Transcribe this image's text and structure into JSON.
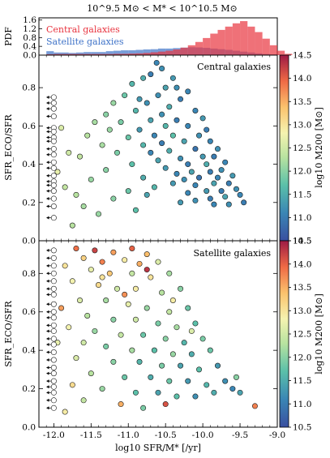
{
  "figure": {
    "title": "10^9.5 M⊙ < M* < 10^10.5 M⊙"
  },
  "colors": {
    "central": "#e8343f",
    "satellite": "#3f73c8"
  },
  "chart_data": [
    {
      "name": "pdf-histogram",
      "type": "bar",
      "ylabel": "PDF",
      "xlim": [
        -12.2,
        -9.0
      ],
      "ylim": [
        0,
        1.7
      ],
      "yticks": [
        0.0,
        0.4,
        0.8,
        1.2,
        1.6
      ],
      "legend": "top-left",
      "bin_edges_start": -12.2,
      "bin_width": 0.1,
      "series": [
        {
          "name": "Central galaxies",
          "color": "#e8343f",
          "values": [
            0.0,
            0.04,
            0.05,
            0.05,
            0.05,
            0.05,
            0.05,
            0.05,
            0.05,
            0.05,
            0.06,
            0.06,
            0.07,
            0.08,
            0.1,
            0.13,
            0.16,
            0.2,
            0.26,
            0.34,
            0.45,
            0.6,
            0.78,
            0.98,
            1.15,
            1.3,
            1.45,
            1.55,
            1.3,
            1.05,
            0.75,
            0.45,
            0.2,
            0.06
          ]
        },
        {
          "name": "Satellite galaxies",
          "color": "#3f73c8",
          "values": [
            0.0,
            0.18,
            0.12,
            0.12,
            0.1,
            0.12,
            0.14,
            0.14,
            0.14,
            0.18,
            0.2,
            0.22,
            0.22,
            0.24,
            0.26,
            0.27,
            0.3,
            0.3,
            0.32,
            0.34,
            0.36,
            0.35,
            0.33,
            0.3,
            0.27,
            0.24,
            0.2,
            0.16,
            0.12,
            0.08,
            0.05,
            0.03,
            0.02,
            0.0
          ]
        }
      ]
    },
    {
      "name": "central-scatter",
      "type": "scatter",
      "annotation": "Central galaxies",
      "ylabel": "SFR_ECO/SFR",
      "xlabel": "",
      "xlim": [
        -12.2,
        -9.0
      ],
      "ylim": [
        0.0,
        0.97
      ],
      "colorbar": {
        "label": "log10 M200 [M⊙]",
        "range": [
          10.5,
          14.5
        ],
        "ticks": [
          10.5,
          11.0,
          11.5,
          12.0,
          12.5,
          13.0,
          13.5,
          14.0,
          14.5
        ]
      },
      "upper_limits": {
        "x": -12.0,
        "y": [
          0.75,
          0.72,
          0.69,
          0.65,
          0.59,
          0.57,
          0.54,
          0.52,
          0.48,
          0.45,
          0.41,
          0.38,
          0.34,
          0.31,
          0.29,
          0.26,
          0.22,
          0.18,
          0.12
        ]
      },
      "points": [
        [
          -10.62,
          0.93,
          11.1
        ],
        [
          -10.55,
          0.9,
          11.2
        ],
        [
          -10.7,
          0.87,
          11.0
        ],
        [
          -10.4,
          0.85,
          11.3
        ],
        [
          -10.8,
          0.85,
          11.5
        ],
        [
          -10.35,
          0.8,
          11.2
        ],
        [
          -10.95,
          0.82,
          11.6
        ],
        [
          -10.5,
          0.8,
          11.4
        ],
        [
          -10.2,
          0.78,
          11.1
        ],
        [
          -10.6,
          0.76,
          11.2
        ],
        [
          -11.05,
          0.76,
          11.8
        ],
        [
          -10.85,
          0.74,
          11.3
        ],
        [
          -10.3,
          0.74,
          11.0
        ],
        [
          -10.75,
          0.72,
          11.2
        ],
        [
          -11.2,
          0.72,
          12.1
        ],
        [
          -10.45,
          0.7,
          11.5
        ],
        [
          -10.1,
          0.68,
          11.1
        ],
        [
          -10.9,
          0.68,
          11.6
        ],
        [
          -11.3,
          0.66,
          12.0
        ],
        [
          -10.55,
          0.66,
          11.2
        ],
        [
          -10.0,
          0.64,
          11.3
        ],
        [
          -10.35,
          0.63,
          11.0
        ],
        [
          -10.7,
          0.63,
          11.4
        ],
        [
          -11.1,
          0.62,
          11.9
        ],
        [
          -11.45,
          0.62,
          12.2
        ],
        [
          -10.2,
          0.6,
          11.1
        ],
        [
          -10.5,
          0.6,
          11.6
        ],
        [
          -10.85,
          0.58,
          11.3
        ],
        [
          -9.95,
          0.58,
          11.0
        ],
        [
          -11.25,
          0.58,
          12.1
        ],
        [
          -10.05,
          0.55,
          11.2
        ],
        [
          -10.4,
          0.55,
          11.7
        ],
        [
          -10.65,
          0.55,
          11.1
        ],
        [
          -11.0,
          0.54,
          11.8
        ],
        [
          -11.55,
          0.55,
          12.3
        ],
        [
          -9.9,
          0.52,
          11.1
        ],
        [
          -10.25,
          0.52,
          11.4
        ],
        [
          -10.55,
          0.51,
          11.0
        ],
        [
          -10.8,
          0.5,
          11.6
        ],
        [
          -11.35,
          0.5,
          12.2
        ],
        [
          -9.8,
          0.48,
          11.2
        ],
        [
          -10.1,
          0.48,
          10.9
        ],
        [
          -10.45,
          0.47,
          11.5
        ],
        [
          -10.7,
          0.46,
          11.1
        ],
        [
          -11.15,
          0.46,
          11.9
        ],
        [
          -9.85,
          0.44,
          11.0
        ],
        [
          -10.0,
          0.44,
          11.3
        ],
        [
          -10.3,
          0.43,
          11.2
        ],
        [
          -10.6,
          0.42,
          11.4
        ],
        [
          -11.65,
          0.44,
          12.4
        ],
        [
          -9.7,
          0.41,
          11.1
        ],
        [
          -9.95,
          0.4,
          11.5
        ],
        [
          -10.2,
          0.4,
          11.0
        ],
        [
          -10.5,
          0.38,
          11.3
        ],
        [
          -10.95,
          0.4,
          11.7
        ],
        [
          -9.75,
          0.37,
          11.2
        ],
        [
          -9.9,
          0.36,
          11.0
        ],
        [
          -10.15,
          0.36,
          11.4
        ],
        [
          -10.35,
          0.35,
          11.1
        ],
        [
          -11.3,
          0.37,
          12.0
        ],
        [
          -9.6,
          0.34,
          11.3
        ],
        [
          -9.8,
          0.33,
          11.1
        ],
        [
          -10.05,
          0.33,
          10.9
        ],
        [
          -10.25,
          0.32,
          11.2
        ],
        [
          -10.8,
          0.33,
          11.5
        ],
        [
          -9.65,
          0.3,
          11.0
        ],
        [
          -9.85,
          0.3,
          11.4
        ],
        [
          -10.1,
          0.29,
          11.1
        ],
        [
          -10.4,
          0.3,
          11.3
        ],
        [
          -11.5,
          0.32,
          12.1
        ],
        [
          -9.55,
          0.27,
          11.2
        ],
        [
          -9.75,
          0.26,
          11.0
        ],
        [
          -9.95,
          0.26,
          11.3
        ],
        [
          -10.2,
          0.25,
          11.1
        ],
        [
          -10.65,
          0.28,
          11.6
        ],
        [
          -9.5,
          0.24,
          11.1
        ],
        [
          -9.7,
          0.23,
          11.4
        ],
        [
          -9.9,
          0.22,
          11.0
        ],
        [
          -10.1,
          0.21,
          11.2
        ],
        [
          -11.0,
          0.26,
          11.8
        ],
        [
          -9.45,
          0.2,
          11.0
        ],
        [
          -9.65,
          0.19,
          11.2
        ],
        [
          -9.85,
          0.19,
          11.1
        ],
        [
          -10.3,
          0.2,
          11.3
        ],
        [
          -11.7,
          0.24,
          12.3
        ],
        [
          -11.9,
          0.59,
          12.6
        ],
        [
          -11.8,
          0.46,
          12.5
        ],
        [
          -11.95,
          0.36,
          12.7
        ],
        [
          -11.85,
          0.28,
          12.4
        ],
        [
          -11.6,
          0.18,
          12.2
        ],
        [
          -11.4,
          0.14,
          12.1
        ],
        [
          -11.75,
          0.08,
          12.3
        ],
        [
          -10.9,
          0.16,
          11.7
        ],
        [
          -11.2,
          0.22,
          12.0
        ],
        [
          -10.75,
          0.24,
          11.4
        ]
      ]
    },
    {
      "name": "satellite-scatter",
      "type": "scatter",
      "annotation": "Satellite galaxies",
      "ylabel": "SFR_ECO/SFR",
      "xlabel": "log10 SFR/M* [/yr]",
      "xlim": [
        -12.2,
        -9.0
      ],
      "ylim": [
        0.0,
        0.97
      ],
      "xticks": [
        -12.0,
        -11.5,
        -11.0,
        -10.5,
        -10.0,
        -9.5,
        -9.0
      ],
      "colorbar": {
        "label": "log10 M200 [M⊙]",
        "range": [
          10.5,
          14.5
        ],
        "ticks": [
          10.5,
          11.0,
          11.5,
          12.0,
          12.5,
          13.0,
          13.5,
          14.0,
          14.5
        ]
      },
      "upper_limits": {
        "x": -12.0,
        "y": [
          0.92,
          0.88,
          0.84,
          0.8,
          0.76,
          0.72,
          0.69,
          0.64,
          0.6,
          0.57,
          0.53,
          0.5,
          0.46,
          0.43,
          0.39,
          0.35,
          0.31,
          0.28,
          0.24,
          0.21,
          0.18,
          0.14,
          0.1
        ]
      },
      "points": [
        [
          -11.7,
          0.93,
          13.9
        ],
        [
          -11.45,
          0.92,
          14.2
        ],
        [
          -11.2,
          0.91,
          13.6
        ],
        [
          -10.95,
          0.93,
          14.0
        ],
        [
          -10.75,
          0.9,
          13.4
        ],
        [
          -11.6,
          0.88,
          13.2
        ],
        [
          -11.35,
          0.86,
          13.8
        ],
        [
          -11.05,
          0.87,
          12.9
        ],
        [
          -10.85,
          0.85,
          13.5
        ],
        [
          -10.6,
          0.86,
          12.6
        ],
        [
          -11.85,
          0.84,
          13.0
        ],
        [
          -11.5,
          0.82,
          12.7
        ],
        [
          -11.25,
          0.8,
          13.3
        ],
        [
          -10.95,
          0.8,
          12.4
        ],
        [
          -10.7,
          0.78,
          13.0
        ],
        [
          -10.45,
          0.8,
          12.2
        ],
        [
          -11.75,
          0.76,
          12.8
        ],
        [
          -11.4,
          0.74,
          13.1
        ],
        [
          -11.15,
          0.72,
          12.5
        ],
        [
          -10.9,
          0.72,
          12.9
        ],
        [
          -10.55,
          0.7,
          12.3
        ],
        [
          -10.3,
          0.72,
          12.0
        ],
        [
          -11.65,
          0.66,
          12.6
        ],
        [
          -11.3,
          0.66,
          12.2
        ],
        [
          -11.0,
          0.64,
          12.7
        ],
        [
          -10.75,
          0.62,
          12.1
        ],
        [
          -10.45,
          0.6,
          12.4
        ],
        [
          -10.2,
          0.62,
          11.8
        ],
        [
          -11.55,
          0.58,
          12.3
        ],
        [
          -11.2,
          0.56,
          12.0
        ],
        [
          -10.9,
          0.56,
          12.5
        ],
        [
          -10.6,
          0.54,
          11.9
        ],
        [
          -10.35,
          0.52,
          12.2
        ],
        [
          -10.1,
          0.54,
          11.7
        ],
        [
          -11.8,
          0.52,
          12.8
        ],
        [
          -11.45,
          0.5,
          12.1
        ],
        [
          -11.1,
          0.48,
          12.4
        ],
        [
          -10.8,
          0.48,
          11.8
        ],
        [
          -10.5,
          0.46,
          12.0
        ],
        [
          -10.25,
          0.44,
          11.6
        ],
        [
          -10.0,
          0.46,
          11.9
        ],
        [
          -11.6,
          0.44,
          12.5
        ],
        [
          -11.3,
          0.42,
          11.9
        ],
        [
          -10.95,
          0.4,
          12.2
        ],
        [
          -10.65,
          0.4,
          11.7
        ],
        [
          -10.4,
          0.38,
          12.1
        ],
        [
          -10.15,
          0.38,
          11.5
        ],
        [
          -9.9,
          0.4,
          11.8
        ],
        [
          -11.7,
          0.36,
          12.6
        ],
        [
          -11.2,
          0.34,
          12.0
        ],
        [
          -10.85,
          0.34,
          11.6
        ],
        [
          -10.55,
          0.32,
          11.9
        ],
        [
          -10.3,
          0.32,
          11.4
        ],
        [
          -10.05,
          0.3,
          11.7
        ],
        [
          -9.8,
          0.32,
          11.3
        ],
        [
          -11.5,
          0.28,
          12.3
        ],
        [
          -11.05,
          0.26,
          11.8
        ],
        [
          -10.7,
          0.26,
          11.5
        ],
        [
          -10.45,
          0.24,
          11.8
        ],
        [
          -10.2,
          0.24,
          11.3
        ],
        [
          -9.95,
          0.22,
          11.6
        ],
        [
          -9.7,
          0.24,
          11.2
        ],
        [
          -11.35,
          0.2,
          12.1
        ],
        [
          -10.9,
          0.18,
          11.7
        ],
        [
          -10.6,
          0.18,
          11.4
        ],
        [
          -10.35,
          0.16,
          11.7
        ],
        [
          -10.1,
          0.16,
          11.2
        ],
        [
          -9.85,
          0.18,
          11.5
        ],
        [
          -9.6,
          0.2,
          11.1
        ],
        [
          -11.6,
          0.14,
          12.4
        ],
        [
          -11.1,
          0.12,
          13.5
        ],
        [
          -10.8,
          0.1,
          11.9
        ],
        [
          -11.85,
          0.08,
          12.9
        ],
        [
          -10.5,
          0.12,
          14.1
        ],
        [
          -9.5,
          0.18,
          11.4
        ],
        [
          -9.3,
          0.11,
          13.8
        ],
        [
          -9.55,
          0.26,
          12.0
        ],
        [
          -11.9,
          0.62,
          13.6
        ],
        [
          -11.95,
          0.44,
          12.7
        ],
        [
          -11.75,
          0.22,
          13.1
        ],
        [
          -10.75,
          0.82,
          14.3
        ],
        [
          -11.05,
          0.69,
          13.7
        ],
        [
          -10.4,
          0.66,
          12.9
        ],
        [
          -11.35,
          0.78,
          13.0
        ],
        [
          -10.15,
          0.5,
          12.6
        ]
      ]
    }
  ]
}
